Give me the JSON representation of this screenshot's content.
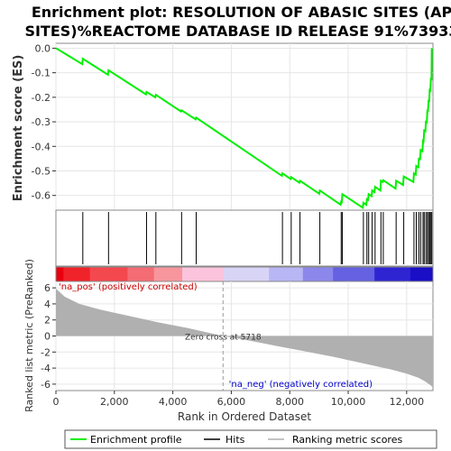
{
  "title_line1": "Enrichment plot: RESOLUTION OF ABASIC SITES (AP",
  "title_line2": "SITES)%REACTOME DATABASE ID RELEASE 91%73933",
  "es_ylabel": "Enrichment score (ES)",
  "rank_ylabel": "Ranked list metric (PreRanked)",
  "xlabel": "Rank in Ordered Dataset",
  "pos_label": "'na_pos' (positively correlated)",
  "neg_label": "'na_neg' (negatively correlated)",
  "zero_cross_label": "Zero cross at 5718",
  "legend": {
    "profile": "Enrichment profile",
    "hits": "Hits",
    "metric": "Ranking metric scores"
  },
  "colors": {
    "profile": "#00ee00",
    "hits": "#000000",
    "metric_fill": "#b0b0b0",
    "pos_label": "#cc0000",
    "neg_label": "#0000cc"
  },
  "chart_data": {
    "type": "line",
    "n_genes": 12900,
    "zero_cross": 5718,
    "x_ticks": [
      0,
      2000,
      4000,
      6000,
      8000,
      10000,
      12000
    ],
    "x_tick_labels": [
      "0",
      "2,000",
      "4,000",
      "6,000",
      "8,000",
      "10,000",
      "12,000"
    ],
    "es_ylim": [
      -0.66,
      0.02
    ],
    "es_ticks": [
      0.0,
      -0.1,
      -0.2,
      -0.3,
      -0.4,
      -0.5,
      -0.6
    ],
    "es_tick_labels": [
      "0.0",
      "-0.1",
      "-0.2",
      "-0.3",
      "-0.4",
      "-0.5",
      "-0.6"
    ],
    "rank_ylim": [
      -6.8,
      6.8
    ],
    "rank_ticks": [
      6,
      4,
      2,
      0,
      -2,
      -4,
      -6
    ],
    "rank_tick_labels": [
      "6",
      "4",
      "2",
      "0",
      "-2",
      "-4",
      "-6"
    ],
    "hits": [
      920,
      1800,
      3100,
      3420,
      4300,
      4800,
      7750,
      8050,
      8350,
      9030,
      9760,
      9800,
      10520,
      10640,
      10700,
      10820,
      10920,
      11120,
      11200,
      11640,
      11900,
      12250,
      12330,
      12420,
      12480,
      12560,
      12600,
      12660,
      12710,
      12750,
      12790,
      12830,
      12860
    ],
    "es_profile": {
      "x": [
        0,
        900,
        920,
        1780,
        1800,
        3080,
        3100,
        3400,
        3420,
        4280,
        4300,
        4780,
        4800,
        7730,
        7750,
        8030,
        8050,
        8330,
        8350,
        9010,
        9030,
        9740,
        9760,
        9780,
        9800,
        10500,
        10520,
        10620,
        10640,
        10680,
        10700,
        10800,
        10820,
        10900,
        10920,
        11100,
        11120,
        11180,
        11200,
        11620,
        11640,
        11880,
        11900,
        12230,
        12250,
        12310,
        12330,
        12400,
        12420,
        12460,
        12480,
        12540,
        12560,
        12580,
        12600,
        12640,
        12660,
        12690,
        12710,
        12730,
        12750,
        12770,
        12790,
        12810,
        12830,
        12850,
        12860
      ],
      "y": [
        0.0,
        -0.065,
        -0.043,
        -0.108,
        -0.09,
        -0.188,
        -0.178,
        -0.2,
        -0.19,
        -0.258,
        -0.253,
        -0.29,
        -0.283,
        -0.52,
        -0.51,
        -0.533,
        -0.525,
        -0.548,
        -0.54,
        -0.593,
        -0.58,
        -0.638,
        -0.625,
        -0.627,
        -0.595,
        -0.65,
        -0.63,
        -0.638,
        -0.615,
        -0.618,
        -0.595,
        -0.603,
        -0.58,
        -0.587,
        -0.565,
        -0.58,
        -0.54,
        -0.545,
        -0.538,
        -0.572,
        -0.54,
        -0.557,
        -0.523,
        -0.545,
        -0.51,
        -0.515,
        -0.48,
        -0.485,
        -0.45,
        -0.452,
        -0.415,
        -0.42,
        -0.378,
        -0.38,
        -0.335,
        -0.338,
        -0.3,
        -0.302,
        -0.255,
        -0.256,
        -0.215,
        -0.216,
        -0.17,
        -0.172,
        -0.125,
        -0.126,
        0.0
      ]
    },
    "rank_metric": {
      "x": [
        0,
        300,
        800,
        1500,
        2500,
        3500,
        4500,
        5718,
        6500,
        7500,
        8500,
        9500,
        10500,
        11500,
        12000,
        12400,
        12600,
        12800,
        12900
      ],
      "y": [
        5.9,
        4.9,
        4.0,
        3.3,
        2.5,
        1.7,
        1.0,
        0.0,
        -0.5,
        -1.2,
        -1.9,
        -2.6,
        -3.4,
        -4.2,
        -4.7,
        -5.2,
        -5.6,
        -6.1,
        -6.4
      ]
    }
  }
}
